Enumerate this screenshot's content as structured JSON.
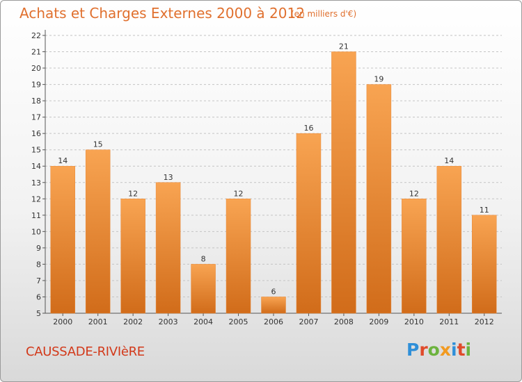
{
  "header": {
    "title": "Achats et Charges Externes 2000 à 2012",
    "unit": "(en milliers d'€)"
  },
  "footer": {
    "commune": "CAUSSADE-RIVIèRE",
    "logo": "Proxiti"
  },
  "colors": {
    "bar_top": "#f8a452",
    "bar_bottom": "#d16c1a",
    "title": "#e0702e",
    "commune": "#d2391a"
  },
  "chart_data": {
    "type": "bar",
    "categories": [
      "2000",
      "2001",
      "2002",
      "2003",
      "2004",
      "2005",
      "2006",
      "2007",
      "2008",
      "2009",
      "2010",
      "2011",
      "2012"
    ],
    "values": [
      14,
      15,
      12,
      13,
      8,
      12,
      6,
      16,
      21,
      19,
      12,
      14,
      11
    ],
    "title": "Achats et Charges Externes 2000 à 2012",
    "ylabel": "",
    "xlabel": "",
    "ylim": [
      5,
      22
    ],
    "yticks": [
      5,
      6,
      7,
      8,
      9,
      10,
      11,
      12,
      13,
      14,
      15,
      16,
      17,
      18,
      19,
      20,
      21,
      22
    ],
    "grid": true,
    "data_labels": true
  }
}
